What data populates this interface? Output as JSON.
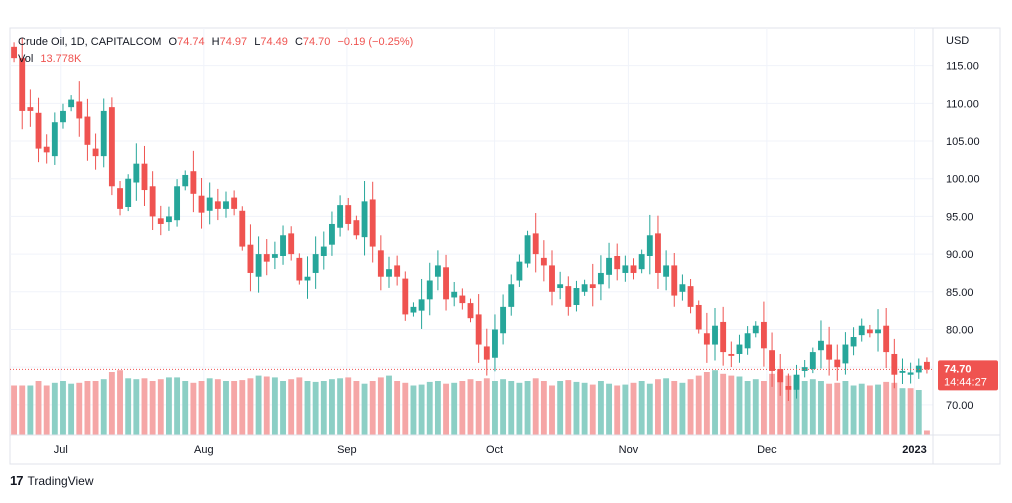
{
  "legend": {
    "symbol": "Crude Oil, 1D, CAPITALCOM",
    "open_label": "O",
    "open": "74.74",
    "high_label": "H",
    "high": "74.97",
    "low_label": "L",
    "low": "74.49",
    "close_label": "C",
    "close": "74.70",
    "change": "−0.19 (−0.25%)",
    "vol_label": "Vol",
    "vol": "13.778K"
  },
  "axis": {
    "currency": "USD"
  },
  "price_badge": {
    "price": "74.70",
    "countdown": "14:44:27"
  },
  "brand": {
    "name": "TradingView",
    "logo": "tradingview-logo-icon"
  },
  "colors": {
    "up": "#26a69a",
    "down": "#ef5350",
    "vol_up": "#8ccfc5",
    "vol_down": "#f5a6a6",
    "grid": "#f0f3fa"
  },
  "chart_data": {
    "type": "candlestick",
    "symbol": "Crude Oil",
    "interval": "1D",
    "y_axis": {
      "ticks": [
        115,
        110,
        105,
        100,
        95,
        90,
        85,
        80,
        75,
        70
      ],
      "range": [
        66,
        120
      ],
      "position": "right"
    },
    "x_axis": {
      "labels": [
        "Jul",
        "Aug",
        "Sep",
        "Oct",
        "Nov",
        "Dec",
        "2023"
      ],
      "label_dates": [
        "2022-07-01",
        "2022-08-01",
        "2022-09-01",
        "2022-10-03",
        "2022-11-01",
        "2022-12-01",
        "2023-01-02"
      ]
    },
    "grid": true,
    "last_price": 74.7,
    "close": [
      116.0,
      109.0,
      109.0,
      104.0,
      103.5,
      107.5,
      109.0,
      110.5,
      108.0,
      104.5,
      103.0,
      109.0,
      99.0,
      96.0,
      100.0,
      102.0,
      98.5,
      95.0,
      94.0,
      95.0,
      99.0,
      100.5,
      98.0,
      95.5,
      97.5,
      96.0,
      97.0,
      96.0,
      91.0,
      87.5,
      90.0,
      89.0,
      90.0,
      92.5,
      90.0,
      86.5,
      87.0,
      90.0,
      91.0,
      94.0,
      96.5,
      94.0,
      92.5,
      97.0,
      91.0,
      87.0,
      88.0,
      87.0,
      82.0,
      83.0,
      84.0,
      86.5,
      88.5,
      84.0,
      85.0,
      83.5,
      81.5,
      78.0,
      76.0,
      80.0,
      83.0,
      86.0,
      89.0,
      92.5,
      90.0,
      88.5,
      85.0,
      86.0,
      83.0,
      85.5,
      86.0,
      85.5,
      87.5,
      89.5,
      88.0,
      88.5,
      87.5,
      90.0,
      92.5,
      87.5,
      88.5,
      84.5,
      86.0,
      83.0,
      80.0,
      78.0,
      80.5,
      77.0,
      76.5,
      78.0,
      79.5,
      80.5,
      77.5,
      74.5,
      73.0,
      72.0,
      74.0,
      75.0,
      77.0,
      78.5,
      76.0,
      75.0,
      78.0,
      79.0,
      80.5,
      79.5,
      80.0,
      77.0,
      74.0,
      74.5,
      74.3,
      75.2,
      74.7
    ],
    "volume_relative": [
      0.55,
      0.55,
      0.55,
      0.6,
      0.55,
      0.58,
      0.6,
      0.57,
      0.58,
      0.6,
      0.6,
      0.62,
      0.7,
      0.72,
      0.63,
      0.62,
      0.63,
      0.6,
      0.62,
      0.64,
      0.64,
      0.6,
      0.58,
      0.6,
      0.63,
      0.62,
      0.6,
      0.6,
      0.61,
      0.63,
      0.66,
      0.65,
      0.64,
      0.6,
      0.62,
      0.64,
      0.6,
      0.59,
      0.6,
      0.62,
      0.63,
      0.64,
      0.6,
      0.57,
      0.6,
      0.64,
      0.66,
      0.6,
      0.58,
      0.55,
      0.56,
      0.59,
      0.6,
      0.57,
      0.58,
      0.6,
      0.62,
      0.6,
      0.63,
      0.6,
      0.62,
      0.6,
      0.58,
      0.6,
      0.63,
      0.6,
      0.55,
      0.6,
      0.61,
      0.59,
      0.58,
      0.56,
      0.6,
      0.57,
      0.55,
      0.56,
      0.58,
      0.6,
      0.57,
      0.62,
      0.63,
      0.6,
      0.58,
      0.62,
      0.66,
      0.7,
      0.72,
      0.68,
      0.66,
      0.65,
      0.6,
      0.62,
      0.6,
      0.68,
      0.7,
      0.66,
      0.62,
      0.6,
      0.62,
      0.6,
      0.57,
      0.58,
      0.6,
      0.55,
      0.57,
      0.55,
      0.56,
      0.59,
      0.58,
      0.52,
      0.52,
      0.5,
      0.05
    ]
  }
}
